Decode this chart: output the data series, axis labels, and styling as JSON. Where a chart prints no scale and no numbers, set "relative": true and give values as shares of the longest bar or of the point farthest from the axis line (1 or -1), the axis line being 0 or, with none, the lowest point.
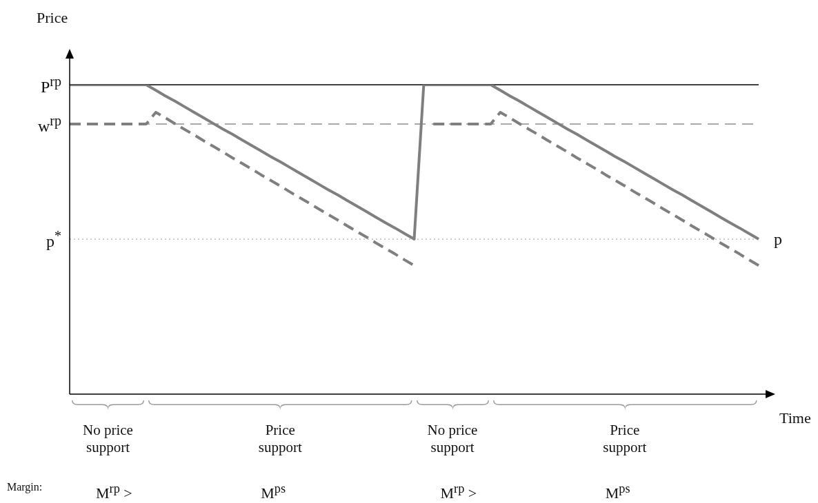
{
  "chart_data": {
    "type": "line",
    "relative": true,
    "xlabel": "Time",
    "ylabel": "Price",
    "categories": [
      null,
      null,
      null,
      null,
      null,
      null,
      null,
      null,
      null,
      null,
      null,
      null,
      null,
      null,
      null,
      null,
      null,
      null,
      null,
      null,
      null,
      null,
      null,
      null,
      null,
      null,
      null,
      null,
      null,
      null,
      null,
      null,
      null,
      null,
      null,
      null,
      null,
      null,
      null,
      null,
      null,
      null,
      null,
      null,
      null,
      null,
      null,
      null,
      null,
      null,
      null,
      null,
      null,
      null,
      null,
      null,
      null,
      null,
      null,
      null,
      null,
      null,
      null,
      null,
      null,
      null,
      null,
      null,
      null,
      null,
      null,
      null,
      null
    ],
    "series": [
      {
        "color": "#7f7f7f",
        "values": [
          1,
          1,
          1,
          1,
          1,
          1,
          1,
          1,
          1,
          0.982,
          0.964,
          0.947,
          0.929,
          0.911,
          0.893,
          0.875,
          0.857,
          0.84,
          0.822,
          0.804,
          0.786,
          0.768,
          0.751,
          0.733,
          0.715,
          0.697,
          0.679,
          0.661,
          0.644,
          0.626,
          0.608,
          0.59,
          0.572,
          0.554,
          0.537,
          0.519,
          0.501,
          1,
          1,
          1,
          1,
          1,
          1,
          1,
          1,
          0.982,
          0.964,
          0.947,
          0.929,
          0.911,
          0.893,
          0.875,
          0.857,
          0.84,
          0.822,
          0.804,
          0.786,
          0.768,
          0.751,
          0.733,
          0.715,
          0.697,
          0.679,
          0.661,
          0.644,
          0.626,
          0.608,
          0.59,
          0.572,
          0.554,
          0.537,
          0.519,
          0.501
        ]
      },
      {
        "color": "#7f7f7f",
        "line_style": "dashed",
        "values": [
          0.873,
          0.873,
          0.873,
          0.873,
          0.873,
          0.873,
          0.873,
          0.873,
          0.873,
          0.911,
          0.893,
          0.874,
          0.856,
          0.838,
          0.819,
          0.801,
          0.783,
          0.764,
          0.746,
          0.728,
          0.709,
          0.691,
          0.673,
          0.654,
          0.636,
          0.618,
          0.599,
          0.581,
          0.563,
          0.544,
          0.526,
          0.508,
          0.489,
          0.471,
          0.453,
          0.434,
          0.416,
          null,
          0.873,
          0.873,
          0.873,
          0.873,
          0.873,
          0.873,
          0.873,
          0.911,
          0.893,
          0.874,
          0.856,
          0.838,
          0.819,
          0.801,
          0.783,
          0.764,
          0.746,
          0.728,
          0.709,
          0.691,
          0.673,
          0.654,
          0.636,
          0.618,
          0.599,
          0.581,
          0.563,
          0.544,
          0.526,
          0.508,
          0.489,
          0.471,
          0.453,
          0.434,
          0.416
        ]
      }
    ],
    "ref_lines": [
      {
        "axis": "y",
        "value": 1,
        "label": "P$^{rp}$",
        "color": "#000000",
        "line_style": "solid"
      },
      {
        "axis": "y",
        "value": 0.873,
        "label": "w$^{rp}$",
        "color": "#555555",
        "line_style": "dashed"
      },
      {
        "axis": "y",
        "value": 0.501,
        "label": "p$^{*}$",
        "color": "#aaaaaa",
        "line_style": "dotted"
      }
    ],
    "annotations": [
      "No price support",
      "Price support",
      "No price support",
      "Price support",
      "Margin:",
      "M$^{rp}$ >",
      "M$^{ps}$",
      "M$^{rp}$ >",
      "M$^{ps}$",
      "p"
    ]
  }
}
